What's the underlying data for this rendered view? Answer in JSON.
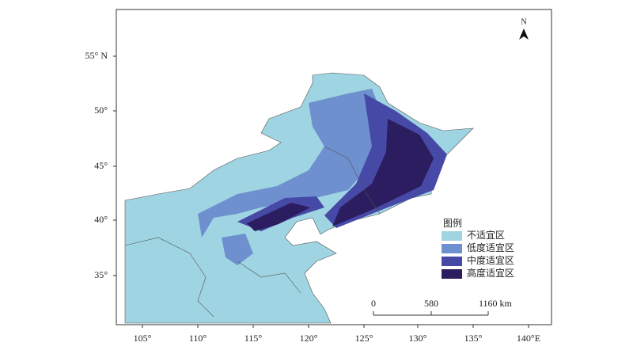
{
  "map": {
    "north": "N",
    "lon_labels": [
      "105°",
      "110°",
      "115°",
      "120°",
      "125°",
      "130°",
      "135°",
      "140°E"
    ],
    "lat_labels": [
      "55° N",
      "50°",
      "45°",
      "40°",
      "35°"
    ],
    "legend": {
      "title": "图例",
      "items": [
        {
          "label": "不适宜区",
          "color": "#9fd4e2"
        },
        {
          "label": "低度适宜区",
          "color": "#6f90cf"
        },
        {
          "label": "中度适宜区",
          "color": "#4649a6"
        },
        {
          "label": "高度适宜区",
          "color": "#2b1d5f"
        }
      ]
    },
    "scale_bar": [
      "0",
      "580",
      "1160 km"
    ]
  }
}
